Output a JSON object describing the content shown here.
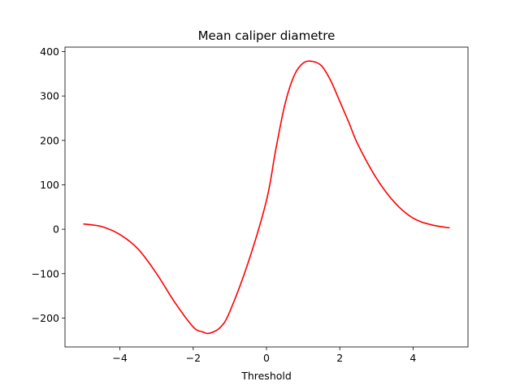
{
  "chart_data": {
    "type": "line",
    "title": "Mean caliper diametre",
    "xlabel": "Threshold",
    "ylabel": "",
    "xlim": [
      -5.5,
      5.5
    ],
    "ylim": [
      -265,
      410
    ],
    "xticks": [
      -4,
      -2,
      0,
      2,
      4
    ],
    "xtick_labels": [
      "−4",
      "−2",
      "0",
      "2",
      "4"
    ],
    "yticks": [
      -200,
      -100,
      0,
      100,
      200,
      300,
      400
    ],
    "ytick_labels": [
      "−200",
      "−100",
      "0",
      "100",
      "200",
      "300",
      "400"
    ],
    "grid": false,
    "legend": "none",
    "series": [
      {
        "color": "#ff0000",
        "x": [
          -5.0,
          -4.5,
          -4.0,
          -3.5,
          -3.0,
          -2.5,
          -2.0,
          -1.75,
          -1.55,
          -1.25,
          -1.0,
          -0.5,
          0.0,
          0.25,
          0.5,
          0.75,
          1.0,
          1.25,
          1.5,
          1.75,
          2.0,
          2.25,
          2.5,
          3.0,
          3.5,
          4.0,
          4.5,
          5.0
        ],
        "y": [
          12,
          6,
          -12,
          -45,
          -100,
          -165,
          -220,
          -231,
          -234,
          -220,
          -185,
          -75,
          65,
          178,
          280,
          345,
          374,
          378,
          368,
          335,
          288,
          240,
          190,
          115,
          60,
          25,
          10,
          3
        ]
      }
    ]
  }
}
